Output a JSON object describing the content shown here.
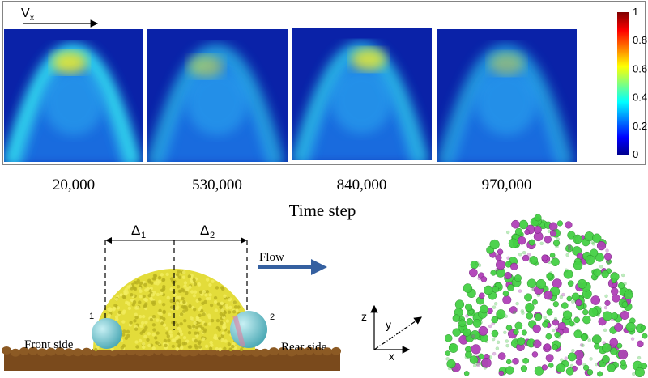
{
  "panel_label": {
    "symbol": "V",
    "subscript": "x"
  },
  "colorbar": {
    "ticks": [
      "1",
      "0.8",
      "0.6",
      "0.4",
      "0.2",
      "0"
    ]
  },
  "time_steps": [
    "20,000",
    "530,000",
    "840,000",
    "970,000"
  ],
  "time_axis_label": "Time step",
  "schematic": {
    "delta_1": {
      "symbol": "Δ",
      "subscript": "1"
    },
    "delta_2": {
      "symbol": "Δ",
      "subscript": "2"
    },
    "flow": "Flow",
    "particle_1": "1",
    "particle_2": "2",
    "front": "Front side",
    "rear": "Rear side",
    "axes": {
      "z": "z",
      "y": "y",
      "x": "x"
    }
  }
}
